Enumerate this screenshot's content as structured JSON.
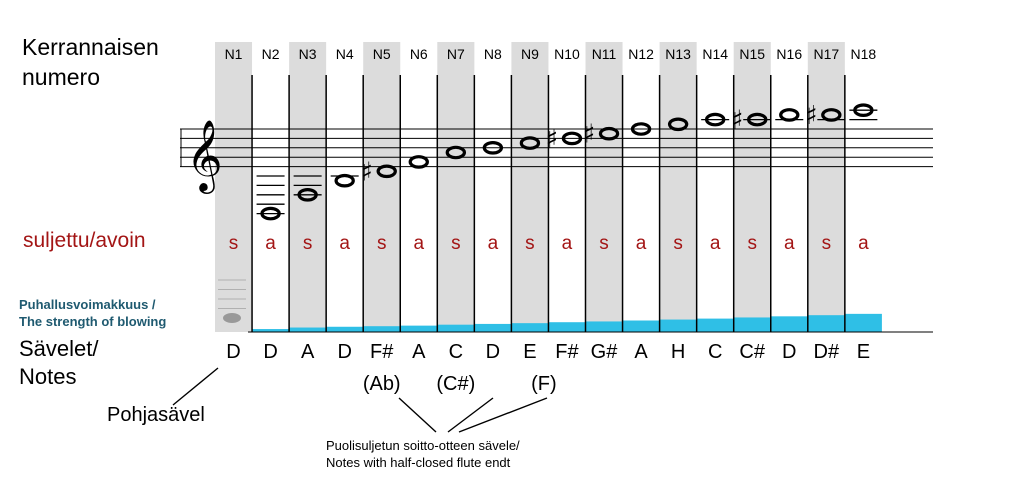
{
  "labels": {
    "harmonic_number": "Kerrannaisen numero",
    "harmonic_number_line1": "Kerrannaisen",
    "harmonic_number_line2": "numero",
    "closed_open": "suljettu/avoin",
    "blowing_strength_line1": "Puhallusvoimakkuus /",
    "blowing_strength_line2": "The strength of blowing",
    "notes_line1": "Sävelet/",
    "notes_line2": "Notes",
    "fundamental": "Pohjasävel",
    "half_closed_line1": "Puolisuljetun soitto-otteen sävele/",
    "half_closed_line2": "Notes with half-closed flute endt"
  },
  "colors": {
    "shade": "#dcdcdc",
    "state_text": "#a31515",
    "blowing_bar": "#2fbfe6",
    "blowing_label": "#1f5a70"
  },
  "columns": [
    {
      "n": "N1",
      "state": "s",
      "note": "D",
      "alt": "",
      "shaded": true,
      "blow": 0
    },
    {
      "n": "N2",
      "state": "a",
      "note": "D",
      "alt": "",
      "shaded": false,
      "blow": 0.05
    },
    {
      "n": "N3",
      "state": "s",
      "note": "A",
      "alt": "",
      "shaded": true,
      "blow": 0.13
    },
    {
      "n": "N4",
      "state": "a",
      "note": "D",
      "alt": "",
      "shaded": false,
      "blow": 0.17
    },
    {
      "n": "N5",
      "state": "s",
      "note": "F#",
      "alt": "(Ab)",
      "shaded": true,
      "blow": 0.2
    },
    {
      "n": "N6",
      "state": "a",
      "note": "A",
      "alt": "",
      "shaded": false,
      "blow": 0.23
    },
    {
      "n": "N7",
      "state": "s",
      "note": "C",
      "alt": "(C#)",
      "shaded": true,
      "blow": 0.28
    },
    {
      "n": "N8",
      "state": "a",
      "note": "D",
      "alt": "",
      "shaded": false,
      "blow": 0.32
    },
    {
      "n": "N9",
      "state": "s",
      "note": "E",
      "alt": "(F)",
      "shaded": true,
      "blow": 0.36
    },
    {
      "n": "N10",
      "state": "a",
      "note": "F#",
      "alt": "",
      "shaded": false,
      "blow": 0.41
    },
    {
      "n": "N11",
      "state": "s",
      "note": "G#",
      "alt": "",
      "shaded": true,
      "blow": 0.45
    },
    {
      "n": "N12",
      "state": "a",
      "note": "A",
      "alt": "",
      "shaded": false,
      "blow": 0.5
    },
    {
      "n": "N13",
      "state": "s",
      "note": "H",
      "alt": "",
      "shaded": true,
      "blow": 0.55
    },
    {
      "n": "N14",
      "state": "a",
      "note": "C",
      "alt": "",
      "shaded": false,
      "blow": 0.6
    },
    {
      "n": "N15",
      "state": "s",
      "note": "C#",
      "alt": "",
      "shaded": true,
      "blow": 0.66
    },
    {
      "n": "N16",
      "state": "a",
      "note": "D",
      "alt": "",
      "shaded": false,
      "blow": 0.72
    },
    {
      "n": "N17",
      "state": "s",
      "note": "D#",
      "alt": "",
      "shaded": true,
      "blow": 0.78
    },
    {
      "n": "N18",
      "state": "a",
      "note": "E",
      "alt": "",
      "shaded": false,
      "blow": 0.85
    }
  ],
  "staff_notes": [
    {
      "col": 2,
      "step": -10,
      "sharp": false
    },
    {
      "col": 3,
      "step": -6,
      "sharp": false
    },
    {
      "col": 4,
      "step": -3,
      "sharp": false
    },
    {
      "col": 5,
      "step": -1,
      "sharp": true
    },
    {
      "col": 6,
      "step": 1,
      "sharp": false
    },
    {
      "col": 7,
      "step": 3,
      "sharp": false
    },
    {
      "col": 8,
      "step": 4,
      "sharp": false
    },
    {
      "col": 9,
      "step": 5,
      "sharp": false
    },
    {
      "col": 10,
      "step": 6,
      "sharp": true
    },
    {
      "col": 11,
      "step": 7,
      "sharp": true
    },
    {
      "col": 12,
      "step": 8,
      "sharp": false
    },
    {
      "col": 13,
      "step": 9,
      "sharp": false
    },
    {
      "col": 14,
      "step": 10,
      "sharp": false
    },
    {
      "col": 15,
      "step": 10,
      "sharp": true
    },
    {
      "col": 16,
      "step": 11,
      "sharp": false
    },
    {
      "col": 17,
      "step": 11,
      "sharp": true
    },
    {
      "col": 18,
      "step": 12,
      "sharp": false
    }
  ]
}
